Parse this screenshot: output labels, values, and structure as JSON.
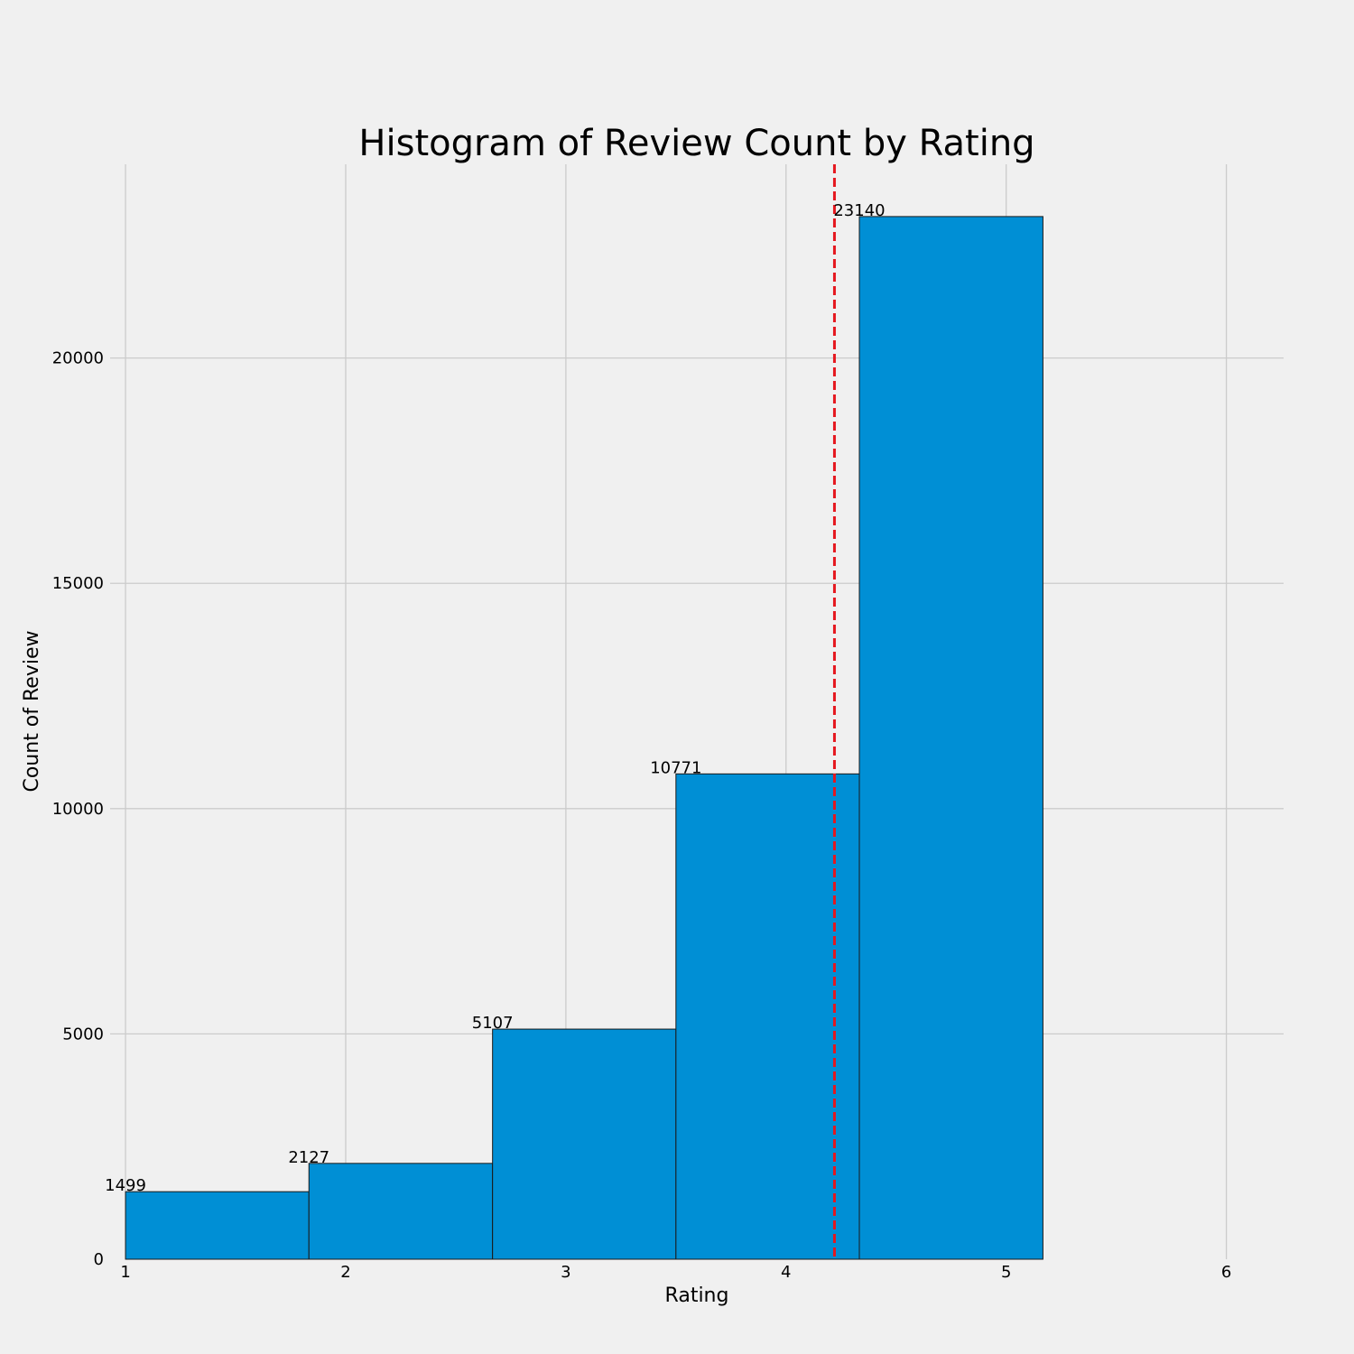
{
  "chart_data": {
    "type": "bar",
    "title": "Histogram of Review Count by Rating",
    "xlabel": "Rating",
    "ylabel": "Count of Review",
    "xlim": [
      0.93,
      6.26
    ],
    "ylim": [
      0,
      24300
    ],
    "xticks": [
      1,
      2,
      3,
      4,
      5,
      6
    ],
    "yticks": [
      0,
      5000,
      10000,
      15000,
      20000
    ],
    "grid": true,
    "bins": [
      {
        "x0": 1.0,
        "x1": 1.833,
        "value": 1499,
        "label": "1499"
      },
      {
        "x0": 1.833,
        "x1": 2.667,
        "value": 2127,
        "label": "2127"
      },
      {
        "x0": 2.667,
        "x1": 3.5,
        "value": 5107,
        "label": "5107"
      },
      {
        "x0": 3.5,
        "x1": 4.333,
        "value": 10771,
        "label": "10771"
      },
      {
        "x0": 4.333,
        "x1": 5.167,
        "value": 23140,
        "label": "23140"
      }
    ],
    "mean_line": {
      "x": 4.22,
      "color": "#e5171e",
      "style": "dashed"
    },
    "bar_color": "#008fd5"
  }
}
